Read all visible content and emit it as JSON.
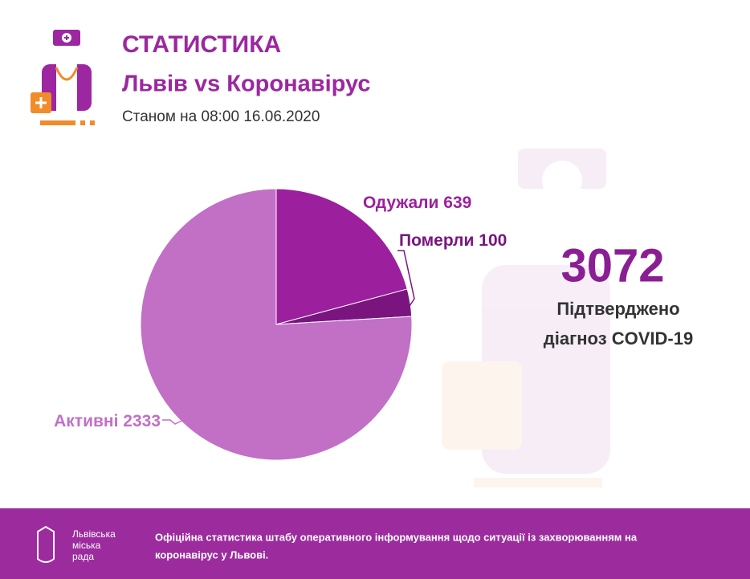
{
  "chart_data": {
    "type": "pie",
    "title": "СТАТИСТИКА",
    "subtitle": "Львів vs Коронавірус",
    "date": "Станом на 08:00 16.06.2020",
    "categories": [
      "Одужали",
      "Померли",
      "Активні"
    ],
    "values": [
      639,
      100,
      2333
    ],
    "colors": [
      "#9c1f9e",
      "#7a1580",
      "#c170c5"
    ],
    "total": {
      "value": 3072,
      "lines": [
        "Підтверджено",
        "діагноз COVID-19"
      ]
    }
  },
  "footer": {
    "logo_lines": [
      "Львівська",
      "міська",
      "рада"
    ],
    "text_lines": [
      "Офіційна статистика штабу оперативного інформування щодо ситуації із захворюванням на",
      "коронавірус у Львові."
    ]
  }
}
